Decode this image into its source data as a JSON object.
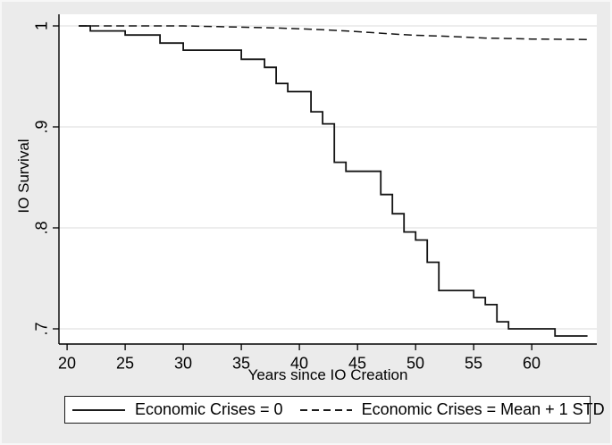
{
  "figure": {
    "outer_background": "#ebebeb",
    "plot_background": "#ffffff",
    "grid_color": "#e2e2e2",
    "axis_color": "#000000",
    "line_color": "#141414"
  },
  "chart_data": {
    "type": "line",
    "subtype": "kaplan-meier-survival",
    "title": "",
    "xlabel": "Years since IO Creation",
    "ylabel": "IO Survival",
    "xlim": [
      19.3,
      65.6
    ],
    "ylim": [
      0.685,
      1.0115
    ],
    "x_ticks": [
      20,
      25,
      30,
      35,
      40,
      45,
      50,
      55,
      60
    ],
    "x_tick_labels": [
      "20",
      "25",
      "30",
      "35",
      "40",
      "45",
      "50",
      "55",
      "60"
    ],
    "y_ticks": [
      1,
      0.9,
      0.8,
      0.7
    ],
    "y_tick_labels": [
      "1",
      ".9",
      ".8",
      ".7"
    ],
    "grid": "horizontal",
    "legend_position": "bottom",
    "series": [
      {
        "name": "Economic Crises = 0",
        "style": "solid",
        "interpolation": "step-after",
        "points": [
          [
            21,
            1.0
          ],
          [
            22,
            0.995
          ],
          [
            25,
            0.991
          ],
          [
            28,
            0.983
          ],
          [
            30,
            0.976
          ],
          [
            35,
            0.967
          ],
          [
            37,
            0.959
          ],
          [
            38,
            0.943
          ],
          [
            39,
            0.935
          ],
          [
            41,
            0.915
          ],
          [
            42,
            0.903
          ],
          [
            43,
            0.865
          ],
          [
            44,
            0.856
          ],
          [
            47,
            0.833
          ],
          [
            48,
            0.814
          ],
          [
            49,
            0.796
          ],
          [
            50,
            0.788
          ],
          [
            51,
            0.766
          ],
          [
            52,
            0.738
          ],
          [
            55,
            0.731
          ],
          [
            56,
            0.724
          ],
          [
            57,
            0.707
          ],
          [
            58,
            0.7
          ],
          [
            62,
            0.693
          ],
          [
            64.8,
            0.693
          ]
        ]
      },
      {
        "name": "Economic Crises = Mean + 1 STD",
        "style": "dashed",
        "interpolation": "linear",
        "points": [
          [
            21,
            1.0
          ],
          [
            30,
            1.0
          ],
          [
            33,
            0.9993
          ],
          [
            36,
            0.9985
          ],
          [
            38,
            0.998
          ],
          [
            41,
            0.9967
          ],
          [
            44,
            0.995
          ],
          [
            46,
            0.9935
          ],
          [
            48,
            0.992
          ],
          [
            50,
            0.9907
          ],
          [
            52,
            0.99
          ],
          [
            54,
            0.989
          ],
          [
            56,
            0.988
          ],
          [
            58,
            0.9875
          ],
          [
            60,
            0.987
          ],
          [
            62,
            0.9868
          ],
          [
            64.9,
            0.9865
          ]
        ]
      }
    ]
  },
  "legend": {
    "entries": [
      {
        "label": "Economic Crises = 0",
        "style": "solid"
      },
      {
        "label": "Economic Crises = Mean + 1 STD",
        "style": "dashed"
      }
    ]
  }
}
